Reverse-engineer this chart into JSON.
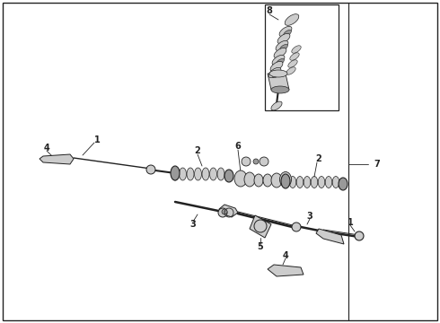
{
  "bg_color": "#ffffff",
  "line_color": "#222222",
  "fig_width": 4.9,
  "fig_height": 3.6,
  "dpi": 100,
  "part_color": "#888888",
  "part_fill": "#cccccc",
  "dark_fill": "#999999",
  "label_fs": 7
}
